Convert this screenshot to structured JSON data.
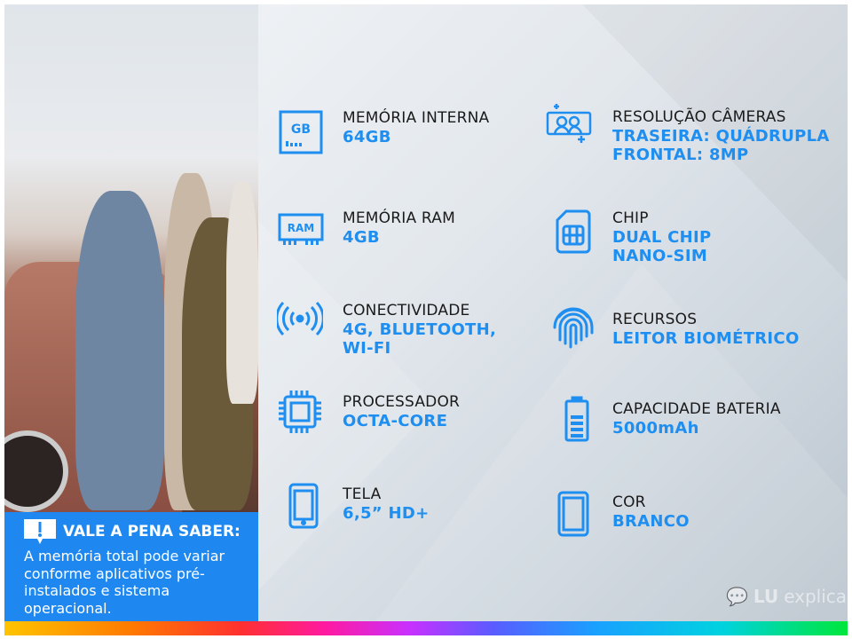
{
  "colors": {
    "accent": "#1e8ef0",
    "note_bg": "#1e88f0",
    "label": "#1a1a1a"
  },
  "specs": [
    {
      "icon": "memory-card-icon",
      "icon_text": "GB",
      "label": "MEMÓRIA INTERNA",
      "value": [
        "64GB"
      ]
    },
    {
      "icon": "ram-icon",
      "icon_text": "RAM",
      "label": "MEMÓRIA RAM",
      "value": [
        "4GB"
      ]
    },
    {
      "icon": "wireless-signal-icon",
      "label": "CONECTIVIDADE",
      "value": [
        "4G, BLUETOOTH,",
        "WI-FI"
      ]
    },
    {
      "icon": "processor-chip-icon",
      "label": "PROCESSADOR",
      "value": [
        "OCTA-CORE"
      ]
    },
    {
      "icon": "smartphone-icon",
      "label": "TELA",
      "value": [
        "6,5” HD+"
      ]
    },
    {
      "icon": "camera-selfie-icon",
      "label": "RESOLUÇÃO CÂMERAS",
      "value": [
        "TRASEIRA: QUÁDRUPLA",
        "FRONTAL: 8MP"
      ]
    },
    {
      "icon": "sim-card-icon",
      "label": "CHIP",
      "value": [
        "DUAL CHIP",
        "NANO-SIM"
      ]
    },
    {
      "icon": "fingerprint-icon",
      "label": "RECURSOS",
      "value": [
        "LEITOR BIOMÉTRICO"
      ]
    },
    {
      "icon": "battery-icon",
      "label": "CAPACIDADE BATERIA",
      "value": [
        "5000mAh"
      ]
    },
    {
      "icon": "phone-color-icon",
      "label": "COR",
      "value": [
        "BRANCO"
      ]
    }
  ],
  "note": {
    "title": "VALE A PENA SABER:",
    "body": "A memória total pode variar conforme aplicativos pré-instalados e sistema operacional."
  },
  "logo": {
    "brand": "LU",
    "text": "explica"
  }
}
